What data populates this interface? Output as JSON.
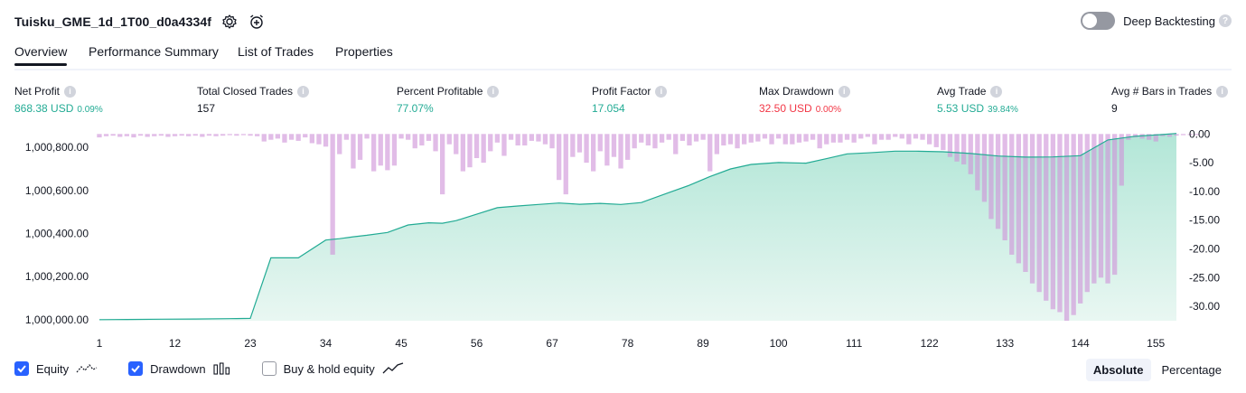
{
  "header": {
    "title": "Tuisku_GME_1d_1T00_d0a4334f",
    "settings_icon": "gear-icon",
    "add_alert_icon": "alarm-plus-icon"
  },
  "deep_backtesting": {
    "label": "Deep Backtesting",
    "enabled": false,
    "help": "?"
  },
  "tabs": [
    {
      "label": "Overview",
      "active": true
    },
    {
      "label": "Performance Summary",
      "active": false
    },
    {
      "label": "List of Trades",
      "active": false
    },
    {
      "label": "Properties",
      "active": false
    }
  ],
  "metrics": [
    {
      "label": "Net Profit",
      "value": "868.38 USD",
      "pct": "0.09%",
      "color": "#22ab94"
    },
    {
      "label": "Total Closed Trades",
      "value": "157",
      "pct": "",
      "color": "#131722"
    },
    {
      "label": "Percent Profitable",
      "value": "77.07%",
      "pct": "",
      "color": "#22ab94"
    },
    {
      "label": "Profit Factor",
      "value": "17.054",
      "pct": "",
      "color": "#22ab94"
    },
    {
      "label": "Max Drawdown",
      "value": "32.50 USD",
      "pct": "0.00%",
      "color": "#f23645"
    },
    {
      "label": "Avg Trade",
      "value": "5.53 USD",
      "pct": "39.84%",
      "color": "#22ab94"
    },
    {
      "label": "Avg # Bars in Trades",
      "value": "9",
      "pct": "",
      "color": "#131722"
    }
  ],
  "info_glyph": "i",
  "chart_data": {
    "type": "area",
    "x_ticks": [
      1,
      12,
      23,
      34,
      45,
      56,
      67,
      78,
      89,
      100,
      111,
      122,
      133,
      144,
      155
    ],
    "y_left_ticks": [
      "1,000,000.00",
      "1,000,200.00",
      "1,000,400.00",
      "1,000,600.00",
      "1,000,800.00"
    ],
    "y_left_values": [
      1000000,
      1000200,
      1000400,
      1000600,
      1000800
    ],
    "y_left_range": [
      999995,
      1000868
    ],
    "y_right_ticks": [
      "0.00",
      "-5.00",
      "-10.00",
      "-15.00",
      "-20.00",
      "-25.00",
      "-30.00"
    ],
    "y_right_values": [
      0,
      -5,
      -10,
      -15,
      -20,
      -25,
      -30
    ],
    "y_right_range": [
      -32.5,
      0.2
    ],
    "x_range": [
      1,
      158
    ],
    "series": [
      {
        "name": "Equity",
        "color": "#22ab94",
        "points": [
          [
            1,
            1000000
          ],
          [
            5,
            1000001
          ],
          [
            10,
            1000002
          ],
          [
            15,
            1000003
          ],
          [
            21,
            1000005
          ],
          [
            23,
            1000006
          ],
          [
            26,
            1000287
          ],
          [
            30,
            1000287
          ],
          [
            34,
            1000370
          ],
          [
            36,
            1000376
          ],
          [
            38,
            1000385
          ],
          [
            40,
            1000392
          ],
          [
            43,
            1000405
          ],
          [
            46,
            1000440
          ],
          [
            49,
            1000450
          ],
          [
            51,
            1000448
          ],
          [
            53,
            1000460
          ],
          [
            56,
            1000490
          ],
          [
            59,
            1000520
          ],
          [
            62,
            1000528
          ],
          [
            65,
            1000535
          ],
          [
            68,
            1000542
          ],
          [
            71,
            1000536
          ],
          [
            74,
            1000540
          ],
          [
            77,
            1000535
          ],
          [
            80,
            1000544
          ],
          [
            84,
            1000590
          ],
          [
            87,
            1000624
          ],
          [
            90,
            1000665
          ],
          [
            93,
            1000700
          ],
          [
            96,
            1000721
          ],
          [
            100,
            1000730
          ],
          [
            104,
            1000727
          ],
          [
            107,
            1000748
          ],
          [
            110,
            1000770
          ],
          [
            113,
            1000775
          ],
          [
            117,
            1000783
          ],
          [
            120,
            1000783
          ],
          [
            124,
            1000780
          ],
          [
            128,
            1000772
          ],
          [
            132,
            1000760
          ],
          [
            136,
            1000755
          ],
          [
            140,
            1000756
          ],
          [
            144,
            1000762
          ],
          [
            148,
            1000835
          ],
          [
            152,
            1000852
          ],
          [
            156,
            1000860
          ],
          [
            158,
            1000865
          ]
        ]
      },
      {
        "name": "Drawdown",
        "color": "#ce93d8",
        "values": [
          -0.6,
          -0.4,
          -0.3,
          -0.5,
          -0.4,
          -0.6,
          -0.3,
          -0.5,
          -0.4,
          -0.3,
          -0.5,
          -0.4,
          -0.3,
          -0.4,
          -0.3,
          -0.5,
          -0.3,
          -0.4,
          -0.3,
          -0.2,
          -0.3,
          -0.2,
          -0.3,
          -0.4,
          -1.3,
          -1.0,
          -0.8,
          -1.5,
          -1.0,
          -1.2,
          -0.6,
          -1.6,
          -1.8,
          -2.2,
          -21.0,
          -3.5,
          -1.0,
          -6.0,
          -4.5,
          -0.8,
          -6.5,
          -5.5,
          -6.3,
          -5.5,
          -0.8,
          -1.0,
          -2.5,
          -2.0,
          -1.2,
          -3.0,
          -10.5,
          -1.8,
          -3.5,
          -6.5,
          -5.8,
          -4.2,
          -5.0,
          -3.0,
          -1.5,
          -3.8,
          -1.0,
          -2.0,
          -2.0,
          -1.2,
          -1.3,
          -1.8,
          -2.5,
          -8.0,
          -10.5,
          -4.0,
          -3.2,
          -5.0,
          -6.5,
          -3.0,
          -5.5,
          -4.0,
          -6.0,
          -4.5,
          -2.5,
          -1.5,
          -2.0,
          -2.5,
          -1.5,
          -1.0,
          -3.5,
          -1.2,
          -2.0,
          -1.3,
          -1.0,
          -6.5,
          -3.5,
          -2.0,
          -1.8,
          -2.5,
          -1.8,
          -1.5,
          -1.3,
          -0.8,
          -1.8,
          -0.8,
          -1.8,
          -1.8,
          -1.5,
          -1.3,
          -1.0,
          -2.5,
          -1.8,
          -1.5,
          -1.5,
          -1.0,
          -1.5,
          -0.8,
          -0.5,
          -1.8,
          -1.0,
          -1.0,
          -0.5,
          -0.8,
          -1.8,
          -0.8,
          -1.0,
          -1.8,
          -2.3,
          -2.8,
          -4.0,
          -4.8,
          -5.3,
          -7.0,
          -9.8,
          -11.8,
          -14.8,
          -16.5,
          -18.5,
          -21.0,
          -22.5,
          -24.0,
          -26.0,
          -27.5,
          -29.0,
          -30.5,
          -31.0,
          -32.5,
          -31.5,
          -29.5,
          -27.5,
          -26.0,
          -25.0,
          -26.0,
          -24.5,
          -9.0,
          -1.0,
          -0.6,
          -0.8,
          -1.0,
          -1.3,
          -0.4,
          -0.5,
          -0.3,
          -0.2,
          -0.1,
          0.0
        ]
      }
    ]
  },
  "legend": [
    {
      "label": "Equity",
      "checked": true,
      "icon": "equity-line-icon"
    },
    {
      "label": "Drawdown",
      "checked": true,
      "icon": "drawdown-bars-icon"
    },
    {
      "label": "Buy & hold equity",
      "checked": false,
      "icon": "buy-hold-line-icon"
    }
  ],
  "mode": [
    {
      "label": "Absolute",
      "active": true
    },
    {
      "label": "Percentage",
      "active": false
    }
  ]
}
